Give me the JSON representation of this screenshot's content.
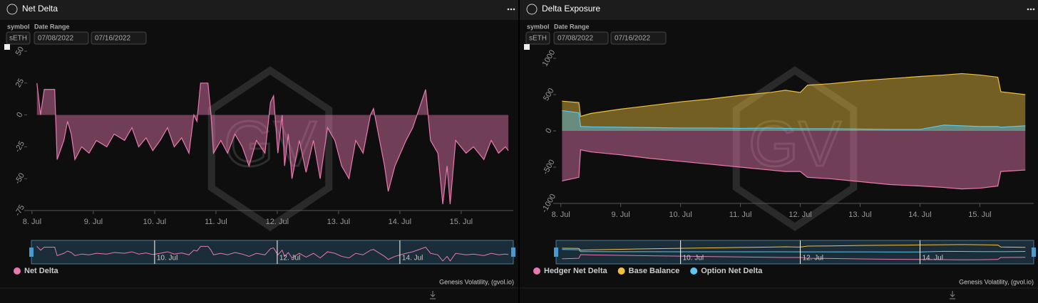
{
  "panels": [
    {
      "title": "Net Delta",
      "symbol_label": "symbol",
      "symbol": "sETH",
      "date_label": "Date Range",
      "date_from": "07/08/2022",
      "date_to": "07/16/2022",
      "watermark": "GV",
      "credit": "Genesis Volatility, (gvol.io)"
    },
    {
      "title": "Delta Exposure",
      "symbol_label": "symbol",
      "symbol": "sETH",
      "date_label": "Date Range",
      "date_from": "07/08/2022",
      "date_to": "07/16/2022",
      "watermark": "GV",
      "credit": "Genesis Volatility, (gvol.io)"
    }
  ],
  "chart_data": [
    {
      "type": "area",
      "x": [
        8.08,
        8.14,
        8.2,
        8.37,
        8.41,
        8.52,
        8.58,
        8.64,
        8.7,
        8.81,
        8.93,
        9.05,
        9.22,
        9.34,
        9.51,
        9.63,
        9.74,
        9.86,
        9.97,
        10.09,
        10.21,
        10.32,
        10.44,
        10.56,
        10.64,
        10.69,
        10.75,
        10.87,
        10.92,
        10.96,
        11.08,
        11.19,
        11.31,
        11.43,
        11.54,
        11.66,
        11.8,
        11.89,
        11.94,
        12.01,
        12.08,
        12.12,
        12.18,
        12.24,
        12.36,
        12.47,
        12.59,
        12.7,
        12.82,
        12.94,
        13.05,
        13.17,
        13.28,
        13.4,
        13.52,
        13.57,
        13.63,
        13.75,
        13.81,
        13.92,
        14.1,
        14.21,
        14.42,
        14.5,
        14.62,
        14.7,
        14.77,
        14.82,
        14.91,
        15.08,
        15.2,
        15.37,
        15.49,
        15.61,
        15.72,
        15.77
      ],
      "series": [
        {
          "name": "Net Delta",
          "color": "#e879b0",
          "values": [
            25,
            0,
            20,
            20,
            -35,
            -20,
            -5,
            -15,
            -35,
            -25,
            -30,
            -20,
            -25,
            -15,
            -20,
            -10,
            -25,
            -18,
            -28,
            -20,
            -10,
            -25,
            -18,
            -30,
            0,
            -5,
            25,
            25,
            0,
            -30,
            -20,
            -30,
            -15,
            -25,
            -40,
            -20,
            -30,
            10,
            15,
            -30,
            0,
            -40,
            -15,
            -50,
            -20,
            -45,
            -20,
            -50,
            -10,
            -20,
            -40,
            -50,
            -20,
            -30,
            0,
            5,
            -10,
            -40,
            -60,
            -40,
            -20,
            -10,
            20,
            -20,
            -30,
            -70,
            -40,
            -70,
            -20,
            -30,
            -25,
            -35,
            -20,
            -30,
            -25,
            -28
          ]
        }
      ],
      "xlim": [
        7.92,
        15.85
      ],
      "xticks": [
        {
          "value": 8,
          "label": "8. Jul"
        },
        {
          "value": 9,
          "label": "9. Jul"
        },
        {
          "value": 10,
          "label": "10. Jul"
        },
        {
          "value": 11,
          "label": "11. Jul"
        },
        {
          "value": 12,
          "label": "12. Jul"
        },
        {
          "value": 13,
          "label": "13. Jul"
        },
        {
          "value": 14,
          "label": "14. Jul"
        },
        {
          "value": 15,
          "label": "15. Jul"
        }
      ],
      "ylim": [
        -75,
        50
      ],
      "yticks": [
        -75,
        -50,
        -25,
        0,
        25,
        50
      ],
      "navigator_xticks": [
        {
          "value": 10,
          "label": "10. Jul"
        },
        {
          "value": 12,
          "label": "12. Jul"
        },
        {
          "value": 14,
          "label": "14. Jul"
        }
      ]
    },
    {
      "type": "area",
      "x": [
        8.02,
        8.3,
        8.33,
        8.5,
        9.0,
        9.5,
        10.0,
        10.5,
        11.0,
        11.5,
        11.75,
        12.0,
        12.12,
        12.5,
        13.0,
        13.5,
        14.0,
        14.4,
        14.7,
        15.0,
        15.3,
        15.35,
        15.76
      ],
      "series": [
        {
          "name": "Hedger Net Delta",
          "color": "#e879b0",
          "values": [
            -690,
            -640,
            -260,
            -290,
            -330,
            -380,
            -420,
            -460,
            -500,
            -540,
            -560,
            -560,
            -640,
            -660,
            -700,
            -740,
            -760,
            -780,
            -800,
            -790,
            -760,
            -560,
            -540
          ]
        },
        {
          "name": "Base Balance",
          "color": "#f0c040",
          "values": [
            410,
            390,
            200,
            240,
            300,
            350,
            400,
            440,
            490,
            530,
            560,
            530,
            630,
            650,
            690,
            720,
            750,
            770,
            790,
            770,
            740,
            540,
            500
          ]
        },
        {
          "name": "Option Net Delta",
          "color": "#5ac8f0",
          "values": [
            280,
            250,
            60,
            55,
            50,
            45,
            40,
            40,
            35,
            40,
            35,
            30,
            30,
            30,
            25,
            20,
            20,
            80,
            70,
            60,
            60,
            50,
            70
          ]
        }
      ],
      "xlim": [
        7.92,
        15.9
      ],
      "xticks": [
        {
          "value": 8,
          "label": "8. Jul"
        },
        {
          "value": 9,
          "label": "9. Jul"
        },
        {
          "value": 10,
          "label": "10. Jul"
        },
        {
          "value": 11,
          "label": "11. Jul"
        },
        {
          "value": 12,
          "label": "12. Jul"
        },
        {
          "value": 13,
          "label": "13. Jul"
        },
        {
          "value": 14,
          "label": "14. Jul"
        },
        {
          "value": 15,
          "label": "15. Jul"
        }
      ],
      "ylim": [
        -1000,
        1000
      ],
      "yticks": [
        -1000,
        -500,
        0,
        500,
        1000
      ],
      "navigator_xticks": [
        {
          "value": 10,
          "label": "10. Jul"
        },
        {
          "value": 12,
          "label": "12. Jul"
        },
        {
          "value": 14,
          "label": "14. Jul"
        }
      ]
    }
  ]
}
